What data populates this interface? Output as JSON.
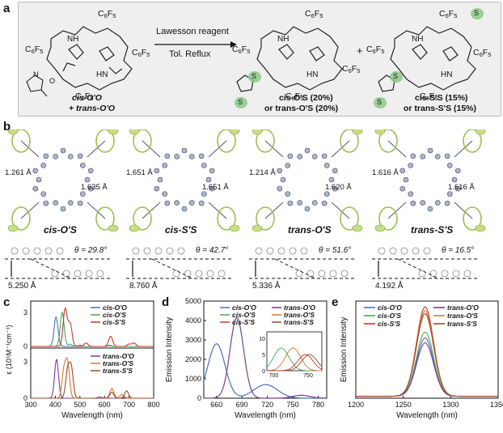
{
  "panel_labels": {
    "a": "a",
    "b": "b",
    "c": "c",
    "d": "d",
    "e": "e"
  },
  "scheme": {
    "reagent_top": "Lawesson reagent",
    "reagent_bottom": "Tol. Reflux",
    "plus": "+",
    "substituent": "C6F5",
    "start_cis": "cis-O'O",
    "start_trans": "+ trans-O'O",
    "prod1_cis": "cis-O'S (20%)",
    "prod1_trans": "or trans-O'S (20%)",
    "prod2_cis": "cis-S'S (15%)",
    "prod2_trans": "or trans-S'S (15%)",
    "atom_n": "N",
    "atom_o": "O",
    "atom_s": "S",
    "atom_nh": "NH",
    "atom_hn": "HN"
  },
  "crystals": [
    {
      "name": "cis-O'S",
      "bond1": "1.261 Å",
      "bond2": "1.635 Å",
      "theta": "θ = 29.8°",
      "dist": "5.250 Å"
    },
    {
      "name": "cis-S'S",
      "bond1": "1.651 Å",
      "bond2": "1.651 Å",
      "theta": "θ = 42.7°",
      "dist": "8.760 Å"
    },
    {
      "name": "trans-O'S",
      "bond1": "1.214 Å",
      "bond2": "1.620 Å",
      "theta": "θ = 51.6°",
      "dist": "5.336 Å"
    },
    {
      "name": "trans-S'S",
      "bond1": "1.616 Å",
      "bond2": "1.616 Å",
      "theta": "θ = 16.5°",
      "dist": "4.192 Å"
    }
  ],
  "colors": {
    "cisOO": "#4a73b8",
    "cisOS": "#45a85a",
    "cisSS": "#c63a2c",
    "transOO": "#7a3d8f",
    "transOS": "#d9782c",
    "transSS": "#9b4a2a",
    "s_highlight": "#8cc98a"
  },
  "chart_data": [
    {
      "type": "line",
      "panel": "c",
      "xlabel": "Wavelength (nm)",
      "ylabel": "ε (10⁵M⁻¹cm⁻¹)",
      "xlim": [
        300,
        800
      ],
      "xticks": [
        "300",
        "400",
        "500",
        "600",
        "700",
        "800"
      ],
      "top_yticks": [
        "0",
        "3"
      ],
      "bottom_yticks": [
        "0",
        "3"
      ],
      "series": [
        {
          "name": "cis-O'O",
          "panel": "top",
          "peaks": [
            [
              403,
              2.6
            ],
            [
              500,
              0.1
            ],
            [
              620,
              0.05
            ]
          ]
        },
        {
          "name": "cis-O'S",
          "panel": "top",
          "peaks": [
            [
              428,
              3.0
            ],
            [
              460,
              0.2
            ],
            [
              620,
              0.1
            ]
          ]
        },
        {
          "name": "cis-S'S",
          "panel": "top",
          "peaks": [
            [
              440,
              3.3
            ],
            [
              460,
              2.0
            ],
            [
              525,
              0.3
            ],
            [
              625,
              0.9
            ],
            [
              700,
              0.2
            ],
            [
              720,
              0.3
            ]
          ]
        },
        {
          "name": "trans-O'O",
          "panel": "bottom",
          "peaks": [
            [
              405,
              3.2
            ],
            [
              580,
              0.1
            ],
            [
              680,
              0.1
            ]
          ]
        },
        {
          "name": "trans-O'S",
          "panel": "bottom",
          "peaks": [
            [
              435,
              2.2
            ],
            [
              450,
              2.8
            ],
            [
              630,
              0.8
            ],
            [
              670,
              0.3
            ]
          ]
        },
        {
          "name": "trans-S'S",
          "panel": "bottom",
          "peaks": [
            [
              450,
              2.2
            ],
            [
              465,
              2.4
            ],
            [
              630,
              0.5
            ],
            [
              690,
              0.6
            ]
          ]
        }
      ]
    },
    {
      "type": "line",
      "panel": "d",
      "xlabel": "Wavelength (nm)",
      "ylabel": "Emission Intensity",
      "xlim": [
        645,
        790
      ],
      "ylim": [
        0,
        5000
      ],
      "xticks": [
        "660",
        "690",
        "720",
        "750",
        "780"
      ],
      "yticks": [
        "0",
        "1000",
        "2000",
        "3000",
        "4000",
        "5000"
      ],
      "series": [
        {
          "name": "cis-O'O",
          "peak_nm": 660,
          "peak_intensity": 2800
        },
        {
          "name": "trans-O'O",
          "peak_nm": 684,
          "peak_intensity": 4150
        },
        {
          "name": "cis-O'S",
          "peak_nm": 711,
          "peak_intensity": 7
        },
        {
          "name": "trans-O'S",
          "peak_nm": 728,
          "peak_intensity": 7
        },
        {
          "name": "cis-S'S",
          "peak_nm": 746,
          "peak_intensity": 5
        },
        {
          "name": "trans-S'S",
          "peak_nm": 752,
          "peak_intensity": 5
        }
      ],
      "inset": {
        "yticks": [
          "0",
          "5",
          "10"
        ],
        "xticks": [
          "700",
          "750"
        ],
        "ylim": [
          0,
          12
        ],
        "xlim": [
          690,
          770
        ]
      }
    },
    {
      "type": "line",
      "panel": "e",
      "xlabel": "Wavelength (nm)",
      "ylabel": "Emission Intensity",
      "xlim": [
        1200,
        1350
      ],
      "xticks": [
        "1200",
        "1250",
        "1300",
        "1350"
      ],
      "series": [
        {
          "name": "cis-O'O",
          "peak_nm": 1273,
          "peak_height": 0.6
        },
        {
          "name": "cis-O'S",
          "peak_nm": 1273,
          "peak_height": 0.66
        },
        {
          "name": "cis-S'S",
          "peak_nm": 1273,
          "peak_height": 0.92
        },
        {
          "name": "trans-O'O",
          "peak_nm": 1273,
          "peak_height": 0.55
        },
        {
          "name": "trans-O'S",
          "peak_nm": 1273,
          "peak_height": 0.88
        },
        {
          "name": "trans-S'S",
          "peak_nm": 1273,
          "peak_height": 0.85
        }
      ]
    }
  ]
}
